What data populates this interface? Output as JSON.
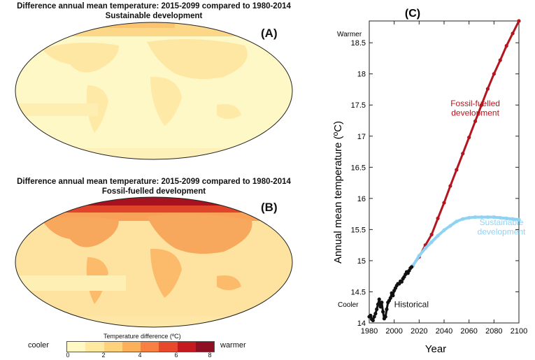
{
  "map_a": {
    "title_line1": "Difference annual mean temperature: 2015-2099 compared to 1980-2014",
    "title_line2": "Sustainable development",
    "label": "(A)"
  },
  "map_b": {
    "title_line1": "Difference annual mean temperature: 2015-2099 compared to 1980-2014",
    "title_line2": "Fossil-fuelled development",
    "label": "(B)"
  },
  "colorbar": {
    "title": "Temperature difference (ºC)",
    "left_label": "cooler",
    "right_label": "warmer",
    "ticks": [
      "0",
      "2",
      "4",
      "6",
      "8"
    ],
    "colors": [
      "#fff7c4",
      "#ffe9a0",
      "#fed27a",
      "#fdb05a",
      "#f88042",
      "#e8492c",
      "#c41a1f",
      "#8e0e22"
    ]
  },
  "chart_data": {
    "type": "line",
    "panel_label": "(C)",
    "xlabel": "Year",
    "ylabel": "Annual mean temperature (ºC)",
    "xlim": [
      1980,
      2100
    ],
    "ylim": [
      14.0,
      18.85
    ],
    "x_ticks": [
      1980,
      2000,
      2020,
      2040,
      2060,
      2080,
      2100
    ],
    "y_ticks": [
      14,
      14.5,
      15,
      15.5,
      16,
      16.5,
      17,
      17.5,
      18,
      18.5
    ],
    "y_tick_labels": [
      "14",
      "14.5",
      "15",
      "15.5",
      "16",
      "16.5",
      "17",
      "17.5",
      "18",
      "18.5"
    ],
    "axis_annotations": {
      "top": "Warmer",
      "bottom": "Cooler"
    },
    "series": [
      {
        "name": "Historical",
        "color": "#111111",
        "points": [
          [
            1980,
            14.1
          ],
          [
            1981,
            14.12
          ],
          [
            1982,
            14.06
          ],
          [
            1983,
            14.04
          ],
          [
            1984,
            14.1
          ],
          [
            1985,
            14.15
          ],
          [
            1986,
            14.22
          ],
          [
            1987,
            14.3
          ],
          [
            1988,
            14.38
          ],
          [
            1989,
            14.26
          ],
          [
            1990,
            14.33
          ],
          [
            1991,
            14.18
          ],
          [
            1992,
            14.07
          ],
          [
            1993,
            14.1
          ],
          [
            1994,
            14.22
          ],
          [
            1995,
            14.33
          ],
          [
            1996,
            14.36
          ],
          [
            1997,
            14.4
          ],
          [
            1998,
            14.48
          ],
          [
            1999,
            14.44
          ],
          [
            2000,
            14.52
          ],
          [
            2001,
            14.56
          ],
          [
            2002,
            14.6
          ],
          [
            2003,
            14.63
          ],
          [
            2004,
            14.63
          ],
          [
            2005,
            14.67
          ],
          [
            2006,
            14.66
          ],
          [
            2007,
            14.71
          ],
          [
            2008,
            14.74
          ],
          [
            2009,
            14.78
          ],
          [
            2010,
            14.82
          ],
          [
            2011,
            14.8
          ],
          [
            2012,
            14.84
          ],
          [
            2013,
            14.88
          ],
          [
            2014,
            14.9
          ]
        ]
      },
      {
        "name": "Fossil-fuelled development",
        "color": "#b3161f",
        "points": [
          [
            2015,
            14.92
          ],
          [
            2020,
            15.06
          ],
          [
            2025,
            15.25
          ],
          [
            2030,
            15.42
          ],
          [
            2035,
            15.68
          ],
          [
            2040,
            15.93
          ],
          [
            2045,
            16.2
          ],
          [
            2050,
            16.46
          ],
          [
            2055,
            16.72
          ],
          [
            2060,
            16.98
          ],
          [
            2065,
            17.24
          ],
          [
            2070,
            17.5
          ],
          [
            2075,
            17.76
          ],
          [
            2080,
            18.0
          ],
          [
            2085,
            18.22
          ],
          [
            2090,
            18.45
          ],
          [
            2095,
            18.65
          ],
          [
            2100,
            18.85
          ]
        ]
      },
      {
        "name": "Sustainable development",
        "color": "#8fd3f4",
        "points": [
          [
            2015,
            14.92
          ],
          [
            2020,
            15.08
          ],
          [
            2025,
            15.2
          ],
          [
            2030,
            15.3
          ],
          [
            2035,
            15.4
          ],
          [
            2040,
            15.49
          ],
          [
            2045,
            15.56
          ],
          [
            2050,
            15.63
          ],
          [
            2055,
            15.67
          ],
          [
            2060,
            15.69
          ],
          [
            2065,
            15.7
          ],
          [
            2070,
            15.7
          ],
          [
            2075,
            15.7
          ],
          [
            2080,
            15.7
          ],
          [
            2085,
            15.69
          ],
          [
            2090,
            15.68
          ],
          [
            2095,
            15.67
          ],
          [
            2100,
            15.66
          ]
        ]
      }
    ],
    "series_labels": [
      {
        "series": "Historical",
        "lines": [
          "Historical"
        ],
        "color": "#111111"
      },
      {
        "series": "Fossil-fuelled development",
        "lines": [
          "Fossil-fuelled",
          "development"
        ],
        "color": "#b3161f"
      },
      {
        "series": "Sustainable development",
        "lines": [
          "Sustainable",
          "development"
        ],
        "color": "#8fd3f4"
      }
    ]
  }
}
